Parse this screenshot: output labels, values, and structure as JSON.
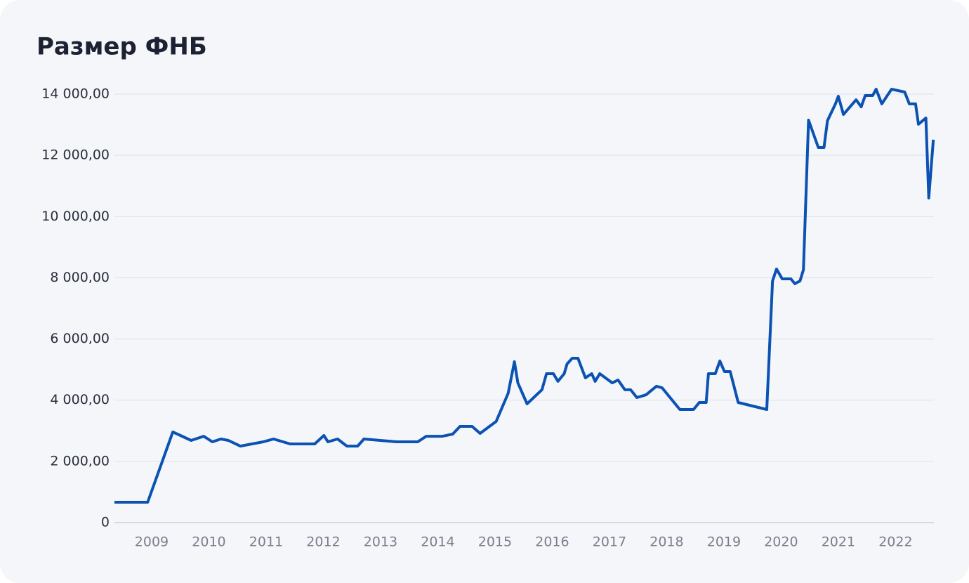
{
  "chart_data": {
    "type": "line",
    "title": "Размер ФНБ",
    "x": [
      2008.35,
      2008.93,
      2009.37,
      2009.69,
      2009.91,
      2010.06,
      2010.21,
      2010.34,
      2010.55,
      2010.95,
      2011.13,
      2011.42,
      2011.85,
      2012.01,
      2012.08,
      2012.25,
      2012.41,
      2012.6,
      2012.71,
      2013.28,
      2013.65,
      2013.8,
      2014.08,
      2014.26,
      2014.39,
      2014.6,
      2014.74,
      2015.02,
      2015.23,
      2015.34,
      2015.4,
      2015.56,
      2015.82,
      2015.9,
      2016.02,
      2016.1,
      2016.21,
      2016.26,
      2016.35,
      2016.45,
      2016.58,
      2016.69,
      2016.75,
      2016.83,
      2017.05,
      2017.15,
      2017.27,
      2017.37,
      2017.48,
      2017.64,
      2017.82,
      2017.92,
      2018.23,
      2018.47,
      2018.57,
      2018.69,
      2018.73,
      2018.85,
      2018.93,
      2019.01,
      2019.11,
      2019.25,
      2019.75,
      2019.85,
      2019.92,
      2020.02,
      2020.17,
      2020.24,
      2020.33,
      2020.39,
      2020.48,
      2020.65,
      2020.75,
      2020.81,
      2020.95,
      2021.0,
      2021.09,
      2021.31,
      2021.4,
      2021.47,
      2021.6,
      2021.66,
      2021.76,
      2021.93,
      2022.16,
      2022.24,
      2022.35,
      2022.4,
      2022.53,
      2022.58,
      2022.66
    ],
    "series": [
      {
        "color": "#0b52b3",
        "values": [
          665,
          665,
          2960,
          2685,
          2820,
          2640,
          2730,
          2685,
          2500,
          2640,
          2730,
          2570,
          2570,
          2845,
          2640,
          2730,
          2500,
          2500,
          2730,
          2640,
          2640,
          2820,
          2820,
          2890,
          3145,
          3145,
          2915,
          3305,
          4225,
          5255,
          4565,
          3880,
          4340,
          4865,
          4865,
          4615,
          4865,
          5185,
          5370,
          5370,
          4730,
          4865,
          4615,
          4865,
          4565,
          4660,
          4340,
          4340,
          4085,
          4175,
          4455,
          4405,
          3695,
          3695,
          3925,
          3925,
          4865,
          4865,
          5280,
          4935,
          4935,
          3925,
          3695,
          7895,
          8285,
          7965,
          7965,
          7805,
          7895,
          8260,
          13150,
          12255,
          12255,
          13130,
          13680,
          13930,
          13335,
          13815,
          13585,
          13955,
          13955,
          14160,
          13680,
          14160,
          14070,
          13680,
          13680,
          13015,
          13220,
          10605,
          12510
        ]
      }
    ],
    "xlim": [
      2008.35,
      2022.67
    ],
    "xticks": [
      2009,
      2010,
      2011,
      2012,
      2013,
      2014,
      2015,
      2016,
      2017,
      2018,
      2019,
      2020,
      2021,
      2022
    ],
    "ylim": [
      0,
      14000
    ],
    "yticks": [
      0,
      {
        "value": 2000,
        "label": "2 000,00"
      },
      {
        "value": 4000,
        "label": "4 000,00"
      },
      {
        "value": 6000,
        "label": "6 000,00"
      },
      {
        "value": 8000,
        "label": "8 000,00"
      },
      {
        "value": 10000,
        "label": "10 000,00"
      },
      {
        "value": 12000,
        "label": "12 000,00"
      },
      {
        "value": 14000,
        "label": "14 000,00"
      }
    ],
    "grid": true
  }
}
